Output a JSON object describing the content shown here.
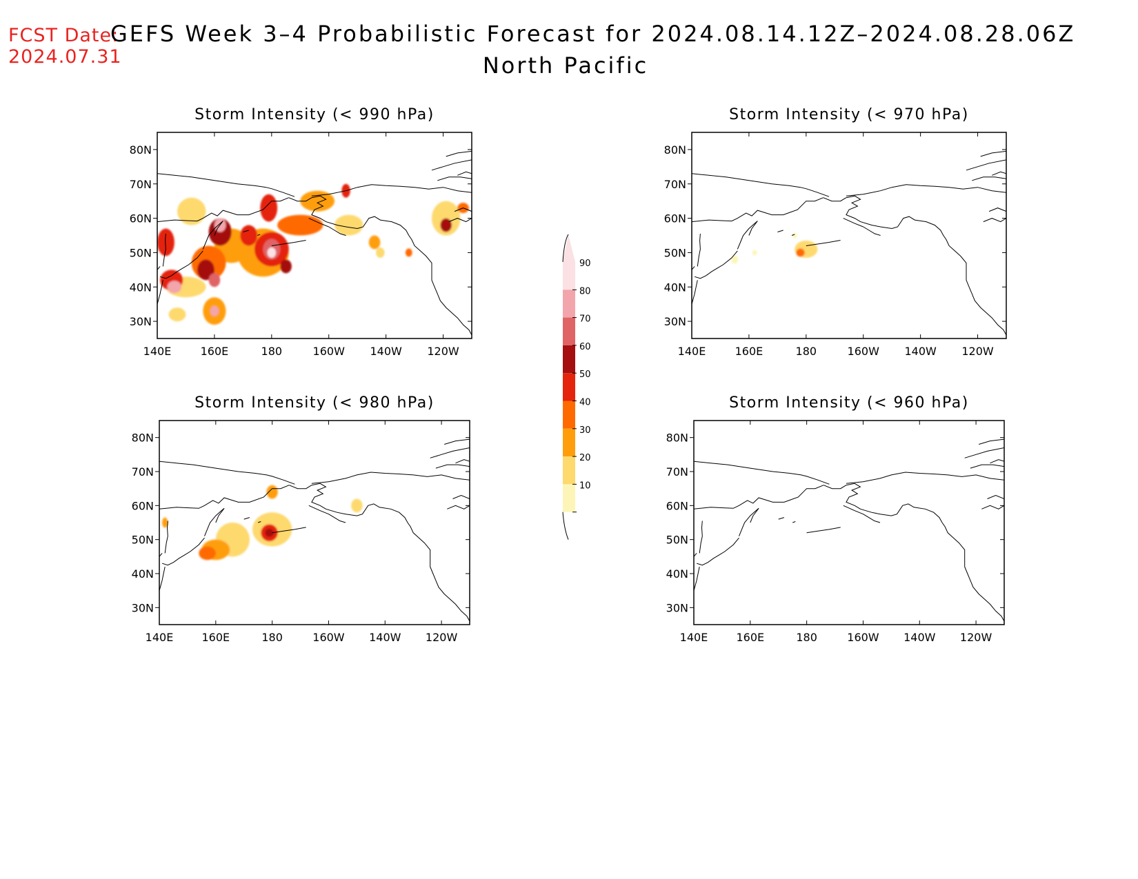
{
  "header": {
    "fcst_label": "FCST Date:",
    "fcst_date": "2024.07.31",
    "title": "GEFS Week 3–4 Probabilistic Forecast for 2024.08.14.12Z–2024.08.28.06Z",
    "subtitle": "North Pacific"
  },
  "axes": {
    "lon_ticks": [
      "140E",
      "160E",
      "180",
      "160W",
      "140W",
      "120W"
    ],
    "lat_ticks": [
      "80N",
      "70N",
      "60N",
      "50N",
      "40N",
      "30N"
    ]
  },
  "colorbar": {
    "labels": [
      "90",
      "80",
      "70",
      "60",
      "50",
      "40",
      "30",
      "20",
      "10"
    ],
    "colors": [
      "#fbe1e3",
      "#f2a5ab",
      "#e06466",
      "#a50f10",
      "#e4240c",
      "#ff6a00",
      "#ff9e0a",
      "#fdd96e",
      "#fdf5b8"
    ]
  },
  "panels": [
    {
      "title": "Storm Intensity (< 990 hPa)",
      "blobs": [
        {
          "lon": 150,
          "lat": 40,
          "rx": 7,
          "ry": 3,
          "v": 20
        },
        {
          "lon": 145,
          "lat": 42,
          "rx": 4,
          "ry": 3,
          "v": 50
        },
        {
          "lon": 146,
          "lat": 40,
          "rx": 2.5,
          "ry": 1.8,
          "v": 80
        },
        {
          "lon": 158,
          "lat": 47,
          "rx": 6,
          "ry": 5,
          "v": 40
        },
        {
          "lon": 157,
          "lat": 45,
          "rx": 3,
          "ry": 3,
          "v": 60
        },
        {
          "lon": 160,
          "lat": 42,
          "rx": 2,
          "ry": 2,
          "v": 70
        },
        {
          "lon": 160,
          "lat": 33,
          "rx": 4,
          "ry": 4,
          "v": 30
        },
        {
          "lon": 160,
          "lat": 33,
          "rx": 1.5,
          "ry": 1.5,
          "v": 80
        },
        {
          "lon": 147,
          "lat": 32,
          "rx": 3,
          "ry": 2,
          "v": 20
        },
        {
          "lon": 166,
          "lat": 52,
          "rx": 6,
          "ry": 5,
          "v": 30
        },
        {
          "lon": 162,
          "lat": 56,
          "rx": 4,
          "ry": 4,
          "v": 60
        },
        {
          "lon": 162,
          "lat": 58,
          "rx": 2,
          "ry": 2,
          "v": 80
        },
        {
          "lon": 152,
          "lat": 62,
          "rx": 5,
          "ry": 4,
          "v": 20
        },
        {
          "lon": 143,
          "lat": 53,
          "rx": 3,
          "ry": 4,
          "v": 50
        },
        {
          "lon": 177,
          "lat": 50,
          "rx": 9,
          "ry": 7,
          "v": 30
        },
        {
          "lon": 180,
          "lat": 51,
          "rx": 6,
          "ry": 5,
          "v": 50
        },
        {
          "lon": 180,
          "lat": 51,
          "rx": 3,
          "ry": 3,
          "v": 70
        },
        {
          "lon": 180,
          "lat": 50,
          "rx": 1.5,
          "ry": 1.5,
          "v": 90
        },
        {
          "lon": 172,
          "lat": 55,
          "rx": 3,
          "ry": 3,
          "v": 50
        },
        {
          "lon": 185,
          "lat": 46,
          "rx": 2,
          "ry": 2,
          "v": 60
        },
        {
          "lon": 179,
          "lat": 63,
          "rx": 3,
          "ry": 4,
          "v": 50
        },
        {
          "lon": 196,
          "lat": 65,
          "rx": 6,
          "ry": 3,
          "v": 30
        },
        {
          "lon": 206,
          "lat": 68,
          "rx": 1.5,
          "ry": 2,
          "v": 50
        },
        {
          "lon": 190,
          "lat": 58,
          "rx": 8,
          "ry": 3,
          "v": 40
        },
        {
          "lon": 207,
          "lat": 58,
          "rx": 5,
          "ry": 3,
          "v": 20
        },
        {
          "lon": 216,
          "lat": 53,
          "rx": 2,
          "ry": 2,
          "v": 30
        },
        {
          "lon": 218,
          "lat": 50,
          "rx": 1.5,
          "ry": 1.5,
          "v": 20
        },
        {
          "lon": 241,
          "lat": 60,
          "rx": 5,
          "ry": 5,
          "v": 20
        },
        {
          "lon": 241,
          "lat": 58,
          "rx": 2,
          "ry": 2,
          "v": 60
        },
        {
          "lon": 247,
          "lat": 63,
          "rx": 2,
          "ry": 1.5,
          "v": 40
        },
        {
          "lon": 228,
          "lat": 50,
          "rx": 1.2,
          "ry": 1.2,
          "v": 40
        }
      ]
    },
    {
      "title": "Storm Intensity (< 970 hPa)",
      "blobs": [
        {
          "lon": 180,
          "lat": 51,
          "rx": 4,
          "ry": 2.5,
          "v": 20
        },
        {
          "lon": 178,
          "lat": 50,
          "rx": 1.5,
          "ry": 1.2,
          "v": 40
        },
        {
          "lon": 155,
          "lat": 48,
          "rx": 1.2,
          "ry": 1.2,
          "v": 10
        },
        {
          "lon": 162,
          "lat": 50,
          "rx": 0.8,
          "ry": 0.8,
          "v": 10
        },
        {
          "lon": 176,
          "lat": 55,
          "rx": 0.8,
          "ry": 0.8,
          "v": 10
        }
      ]
    },
    {
      "title": "Storm Intensity (< 980 hPa)",
      "blobs": [
        {
          "lon": 166,
          "lat": 50,
          "rx": 6,
          "ry": 5,
          "v": 20
        },
        {
          "lon": 160,
          "lat": 47,
          "rx": 5,
          "ry": 3,
          "v": 30
        },
        {
          "lon": 157,
          "lat": 46,
          "rx": 3,
          "ry": 2,
          "v": 40
        },
        {
          "lon": 180,
          "lat": 53,
          "rx": 7,
          "ry": 5,
          "v": 20
        },
        {
          "lon": 179,
          "lat": 52,
          "rx": 3,
          "ry": 2.5,
          "v": 50
        },
        {
          "lon": 179,
          "lat": 52,
          "rx": 1.5,
          "ry": 1.2,
          "v": 60
        },
        {
          "lon": 180,
          "lat": 64,
          "rx": 2,
          "ry": 2,
          "v": 30
        },
        {
          "lon": 142,
          "lat": 55,
          "rx": 1,
          "ry": 1.5,
          "v": 30
        },
        {
          "lon": 210,
          "lat": 60,
          "rx": 2,
          "ry": 2,
          "v": 20
        }
      ]
    },
    {
      "title": "Storm Intensity (< 960 hPa)",
      "blobs": []
    }
  ]
}
